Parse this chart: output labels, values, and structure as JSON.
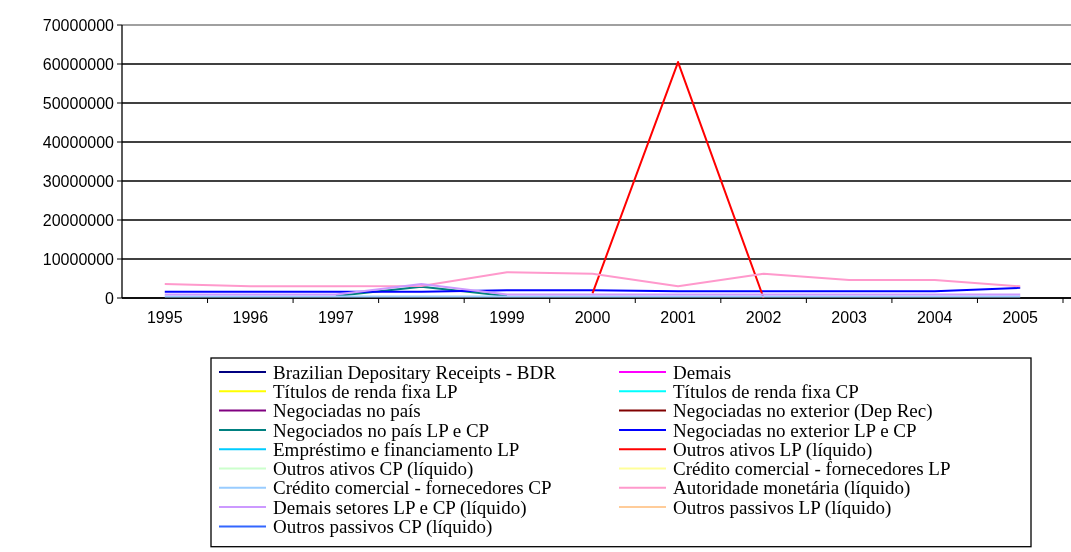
{
  "chart_data": {
    "type": "line",
    "categories": [
      "1995",
      "1996",
      "1997",
      "1998",
      "1999",
      "2000",
      "2001",
      "2002",
      "2003",
      "2004",
      "2005"
    ],
    "ylim": [
      0,
      70000000
    ],
    "yticks": [
      0,
      10000000,
      20000000,
      30000000,
      40000000,
      50000000,
      60000000,
      70000000
    ],
    "grid": "y",
    "legend": "bottom",
    "marker": "none",
    "line_style": "solid",
    "series": [
      {
        "name": "Brazilian Depositary Receipts - BDR",
        "color": "#000080",
        "values": [
          null,
          null,
          null,
          null,
          null,
          null,
          null,
          null,
          null,
          null,
          null
        ]
      },
      {
        "name": "Demais",
        "color": "#ff00ff",
        "values": [
          null,
          null,
          null,
          null,
          null,
          null,
          null,
          null,
          null,
          null,
          null
        ]
      },
      {
        "name": "Títulos de renda fixa LP",
        "color": "#ffff00",
        "values": [
          null,
          null,
          null,
          null,
          null,
          null,
          null,
          null,
          null,
          null,
          null
        ]
      },
      {
        "name": "Títulos de renda fixa CP",
        "color": "#00ffff",
        "values": [
          null,
          null,
          null,
          null,
          null,
          null,
          null,
          null,
          null,
          null,
          null
        ]
      },
      {
        "name": "Negociadas no país",
        "color": "#800080",
        "values": [
          null,
          null,
          null,
          null,
          null,
          null,
          null,
          null,
          null,
          null,
          null
        ]
      },
      {
        "name": "Negociadas no exterior (Dep Rec)",
        "color": "#800000",
        "values": [
          null,
          null,
          null,
          null,
          null,
          null,
          null,
          null,
          null,
          null,
          null
        ]
      },
      {
        "name": "Negociados no país LP e CP",
        "color": "#008080",
        "values": [
          null,
          null,
          500000,
          2900000,
          500000,
          null,
          null,
          null,
          null,
          null,
          null
        ]
      },
      {
        "name": "Negociadas no exterior LP e CP",
        "color": "#0000ff",
        "values": [
          1600000,
          1600000,
          1600000,
          1600000,
          2000000,
          2000000,
          1700000,
          1700000,
          1700000,
          1700000,
          2600000
        ]
      },
      {
        "name": "Empréstimo e financiamento LP",
        "color": "#00ccff",
        "values": [
          null,
          null,
          null,
          null,
          null,
          null,
          null,
          null,
          null,
          null,
          null
        ]
      },
      {
        "name": "Outros ativos LP (líquido)",
        "color": "#ff0000",
        "values": [
          null,
          null,
          null,
          null,
          null,
          1200000,
          60500000,
          0,
          null,
          null,
          null
        ]
      },
      {
        "name": "Outros ativos CP (líquido)",
        "color": "#ccffcc",
        "values": [
          null,
          null,
          null,
          null,
          null,
          null,
          null,
          null,
          null,
          null,
          null
        ]
      },
      {
        "name": "Crédito comercial - fornecedores LP",
        "color": "#ffff99",
        "values": [
          null,
          null,
          null,
          null,
          null,
          null,
          null,
          null,
          null,
          null,
          null
        ]
      },
      {
        "name": "Crédito comercial - fornecedores CP",
        "color": "#99ccff",
        "values": [
          400000,
          400000,
          400000,
          400000,
          400000,
          400000,
          400000,
          400000,
          400000,
          400000,
          400000
        ]
      },
      {
        "name": "Autoridade monetária (líquido)",
        "color": "#ff99cc",
        "values": [
          3600000,
          3000000,
          3000000,
          3100000,
          6600000,
          6200000,
          3000000,
          6200000,
          4600000,
          4600000,
          3000000
        ]
      },
      {
        "name": "Demais setores LP e CP (líquido)",
        "color": "#cc99ff",
        "values": [
          900000,
          900000,
          900000,
          3600000,
          900000,
          900000,
          900000,
          900000,
          900000,
          900000,
          900000
        ]
      },
      {
        "name": "Outros passivos LP (líquido)",
        "color": "#ffcc99",
        "values": [
          null,
          null,
          null,
          null,
          null,
          null,
          null,
          null,
          null,
          null,
          null
        ]
      },
      {
        "name": "Outros passivos CP (líquido)",
        "color": "#3366ff",
        "values": [
          null,
          null,
          null,
          null,
          null,
          null,
          null,
          null,
          null,
          null,
          null
        ]
      }
    ]
  }
}
